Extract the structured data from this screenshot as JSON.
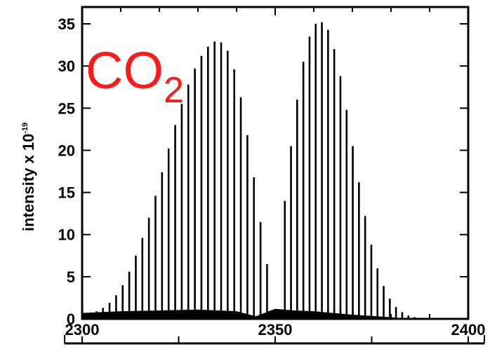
{
  "chart_data": {
    "type": "line",
    "title": "",
    "annotation": {
      "text": "CO",
      "subscript": "2",
      "color": "#ff1a1a"
    },
    "xlabel": "",
    "ylabel": "intensity x 10",
    "ylabel_exponent": "-19",
    "xlim": [
      2300,
      2400
    ],
    "ylim": [
      0,
      37
    ],
    "xticks": [
      2300,
      2350,
      2400
    ],
    "yticks": [
      0,
      5,
      10,
      15,
      20,
      25,
      30,
      35
    ],
    "x_tick_labels": [
      "2300",
      "2350",
      "2400"
    ],
    "y_tick_labels": [
      "0",
      "5",
      "10",
      "15",
      "20",
      "25",
      "30",
      "35"
    ],
    "grid": false,
    "series": [
      {
        "style": "stick",
        "x": [
          2302.0,
          2303.7,
          2305.4,
          2307.1,
          2308.8,
          2310.5,
          2312.2,
          2313.9,
          2315.6,
          2317.3,
          2319.0,
          2320.7,
          2322.4,
          2324.1,
          2325.8,
          2327.5,
          2329.2,
          2330.9,
          2332.6,
          2334.3,
          2336.0,
          2337.7,
          2339.4,
          2341.1,
          2342.8,
          2344.5,
          2346.2,
          2347.9,
          2352.5,
          2354.1,
          2355.7,
          2357.3,
          2358.9,
          2360.5,
          2362.1,
          2363.7,
          2365.3,
          2366.9,
          2368.5,
          2370.1,
          2371.7,
          2373.3,
          2374.9,
          2376.5,
          2378.1,
          2379.7,
          2381.3,
          2382.9,
          2384.5,
          2386.1
        ],
        "y": [
          0.5,
          0.9,
          1.3,
          1.9,
          2.8,
          4.0,
          5.6,
          7.5,
          9.6,
          12.0,
          14.6,
          17.4,
          20.2,
          23.0,
          25.5,
          27.8,
          29.7,
          31.2,
          32.3,
          32.9,
          32.8,
          31.8,
          29.6,
          26.3,
          21.8,
          16.8,
          11.5,
          6.5,
          14.0,
          20.5,
          26.0,
          30.5,
          33.5,
          35.0,
          35.2,
          34.3,
          32.0,
          28.8,
          24.8,
          20.5,
          16.2,
          12.2,
          8.8,
          6.0,
          3.9,
          2.4,
          1.4,
          0.8,
          0.4,
          0.2
        ]
      },
      {
        "style": "dense-background",
        "x": [
          2300,
          2310,
          2320,
          2330,
          2340,
          2345,
          2350,
          2355,
          2360,
          2370,
          2380,
          2385
        ],
        "y": [
          0.7,
          0.9,
          1.0,
          1.1,
          0.9,
          0.3,
          1.2,
          1.0,
          0.9,
          0.5,
          0.2,
          0.0
        ]
      }
    ]
  }
}
